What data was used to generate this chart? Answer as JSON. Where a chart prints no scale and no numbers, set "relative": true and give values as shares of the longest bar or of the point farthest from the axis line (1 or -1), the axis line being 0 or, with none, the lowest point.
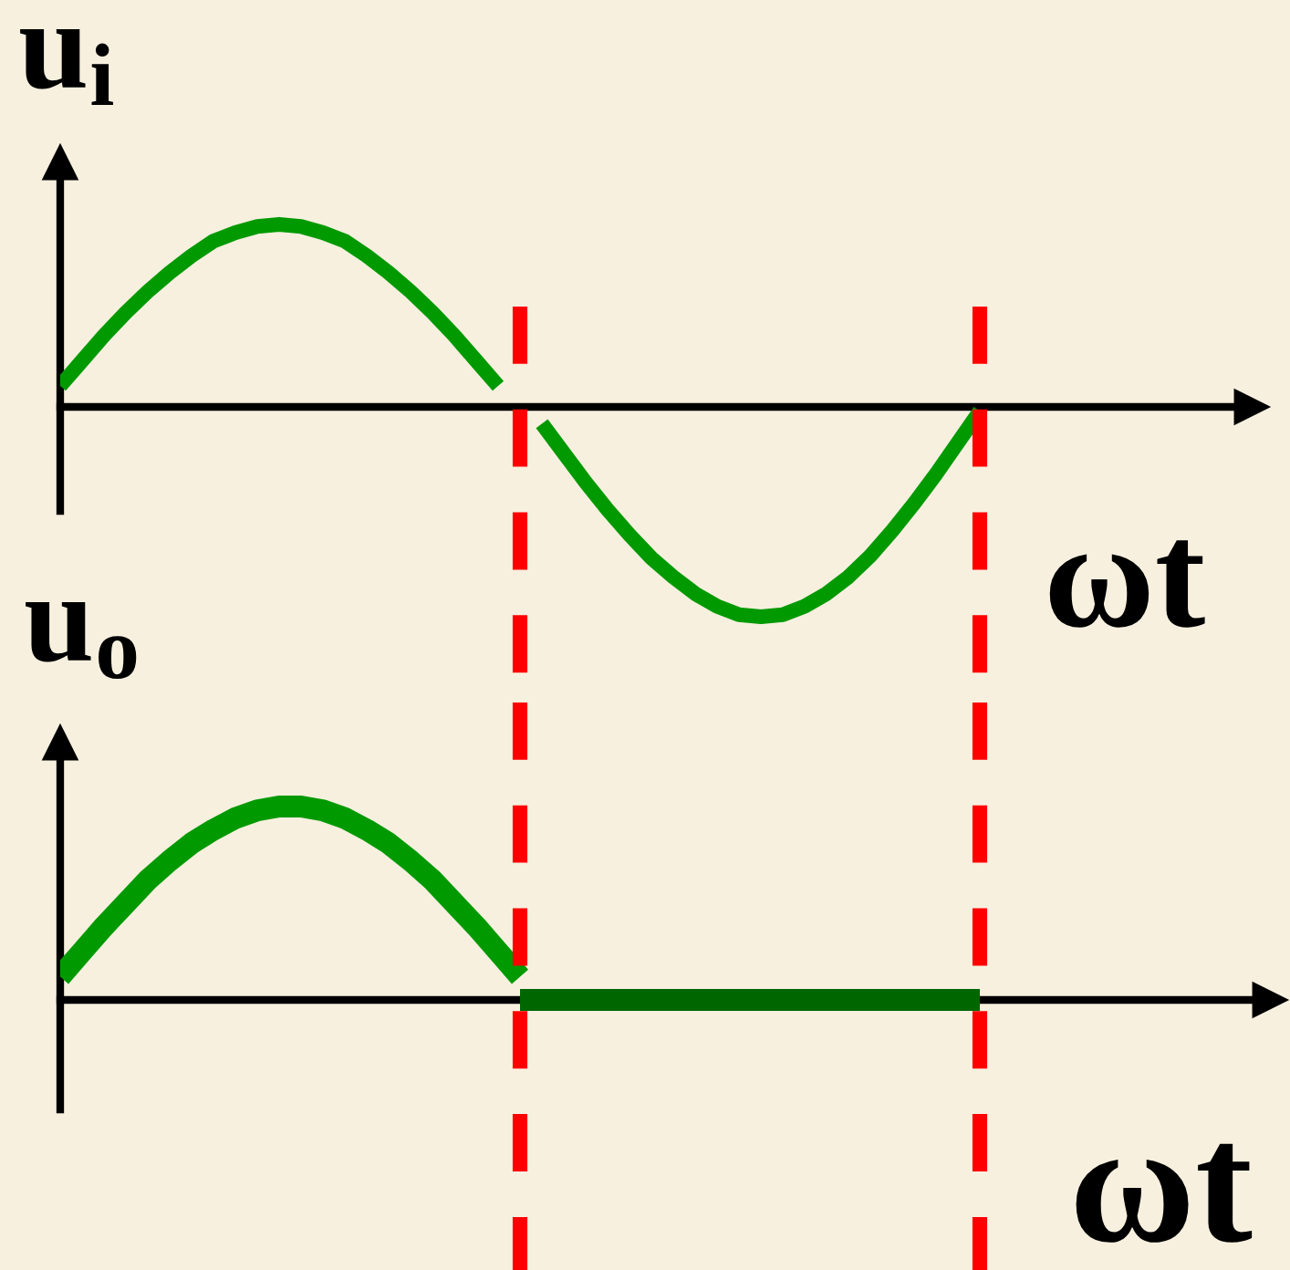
{
  "chart_data": [
    {
      "type": "line",
      "ylabel": "u$_{i}$",
      "xlabel": "ωt",
      "relative": true,
      "categories": [
        null,
        null,
        null,
        null,
        null,
        null,
        null,
        null,
        null,
        null,
        null,
        null,
        null,
        null,
        null,
        null,
        null,
        null,
        null,
        null,
        null,
        null,
        null,
        null,
        null,
        null,
        null,
        null,
        null,
        null,
        null,
        null,
        null,
        null,
        null,
        null,
        null,
        null,
        null,
        null,
        null,
        null,
        null
      ],
      "series": [
        {
          "color": "#009900",
          "values": [
            0.1,
            0.22,
            0.34,
            0.45,
            0.55,
            0.64,
            0.72,
            0.79,
            0.83,
            0.86,
            0.87,
            0.86,
            0.83,
            0.79,
            0.72,
            0.64,
            0.55,
            0.45,
            0.34,
            0.22,
            0.1,
            null,
            null,
            null,
            null,
            null,
            null,
            null,
            null,
            null,
            null,
            null,
            null,
            null,
            null,
            null,
            null,
            null,
            null,
            null,
            null,
            null,
            null
          ]
        },
        {
          "color": "#009900",
          "values": [
            null,
            null,
            null,
            null,
            null,
            null,
            null,
            null,
            null,
            null,
            null,
            null,
            null,
            null,
            null,
            null,
            null,
            null,
            null,
            null,
            null,
            null,
            -0.08,
            -0.22,
            -0.36,
            -0.49,
            -0.61,
            -0.72,
            -0.81,
            -0.89,
            -0.95,
            -0.99,
            -1.0,
            -0.99,
            -0.95,
            -0.89,
            -0.81,
            -0.71,
            -0.59,
            -0.46,
            -0.32,
            -0.17,
            -0.02
          ]
        }
      ]
    },
    {
      "type": "line",
      "ylabel": "u$_{o}$",
      "xlabel": "ωt",
      "relative": true,
      "categories": [
        null,
        null,
        null,
        null,
        null,
        null,
        null,
        null,
        null,
        null,
        null,
        null,
        null,
        null,
        null,
        null,
        null,
        null,
        null,
        null,
        null,
        null,
        null,
        null,
        null,
        null,
        null,
        null,
        null,
        null,
        null,
        null,
        null,
        null,
        null,
        null,
        null,
        null,
        null,
        null,
        null,
        null,
        null
      ],
      "series": [
        {
          "color": "#009900",
          "values": [
            0.12,
            0.25,
            0.38,
            0.5,
            0.62,
            0.72,
            0.81,
            0.88,
            0.94,
            0.98,
            1.0,
            1.0,
            0.98,
            0.94,
            0.88,
            0.81,
            0.72,
            0.62,
            0.5,
            0.38,
            0.25,
            0.12,
            null,
            null,
            null,
            null,
            null,
            null,
            null,
            null,
            null,
            null,
            null,
            null,
            null,
            null,
            null,
            null,
            null,
            null,
            null,
            null,
            null
          ]
        },
        {
          "color": "#006600",
          "values": [
            null,
            null,
            null,
            null,
            null,
            null,
            null,
            null,
            null,
            null,
            null,
            null,
            null,
            null,
            null,
            null,
            null,
            null,
            null,
            null,
            null,
            0,
            0,
            0,
            0,
            0,
            0,
            0,
            0,
            0,
            0,
            0,
            0,
            0,
            0,
            0,
            0,
            0,
            0,
            0,
            0,
            0,
            0
          ]
        }
      ]
    }
  ]
}
